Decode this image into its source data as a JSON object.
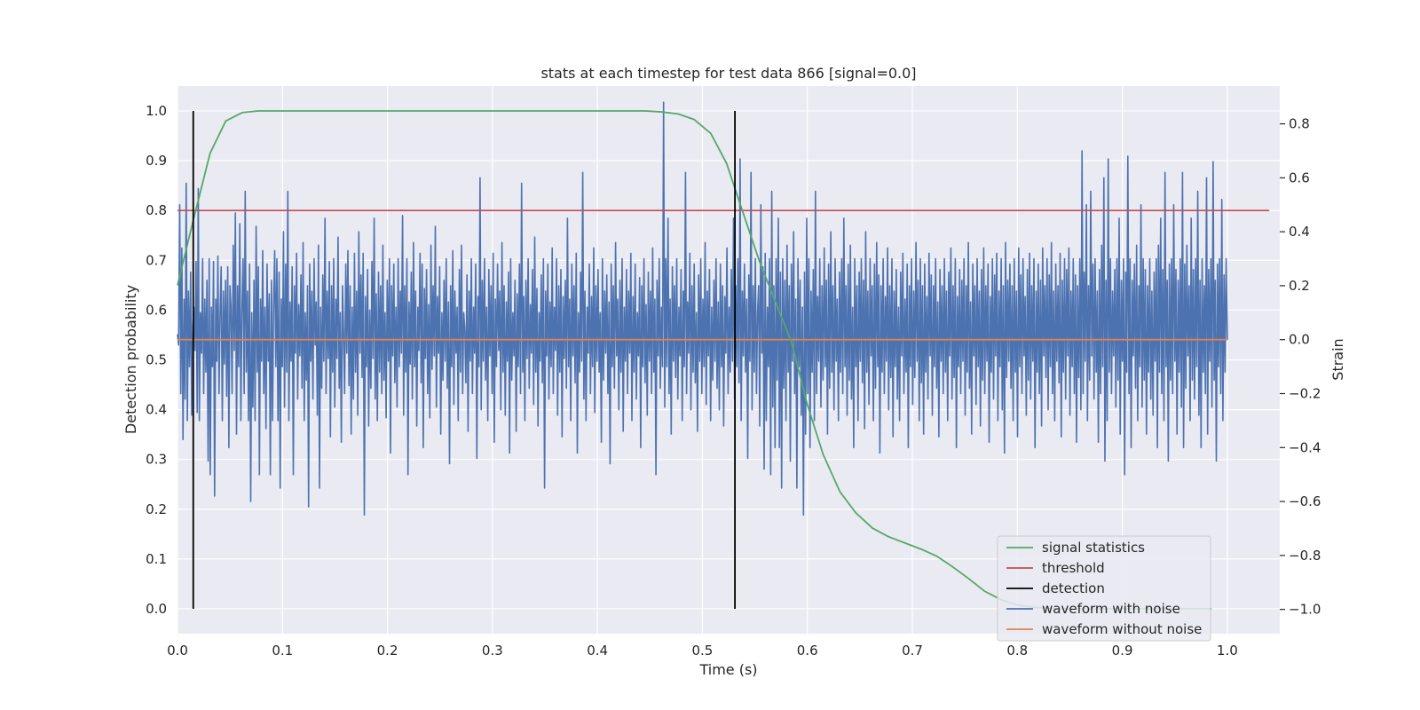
{
  "chart_data": {
    "type": "line",
    "title": "stats at each timestep for test data 866 [signal=0.0]",
    "xlabel": "Time (s)",
    "ylabel": "Detection probability",
    "y2label": "Strain",
    "xlim": [
      0.0,
      1.05
    ],
    "ylim": [
      -0.05,
      1.05
    ],
    "y2lim": [
      -1.09,
      0.94
    ],
    "xticks": [
      0.0,
      0.1,
      0.2,
      0.3,
      0.4,
      0.5,
      0.6,
      0.7,
      0.8,
      0.9,
      1.0
    ],
    "xtick_labels": [
      "0.0",
      "0.1",
      "0.2",
      "0.3",
      "0.4",
      "0.5",
      "0.6",
      "0.7",
      "0.8",
      "0.9",
      "1.0"
    ],
    "yticks": [
      0.0,
      0.1,
      0.2,
      0.3,
      0.4,
      0.5,
      0.6,
      0.7,
      0.8,
      0.9,
      1.0
    ],
    "ytick_labels": [
      "0.0",
      "0.1",
      "0.2",
      "0.3",
      "0.4",
      "0.5",
      "0.6",
      "0.7",
      "0.8",
      "0.9",
      "1.0"
    ],
    "y2ticks": [
      -1.0,
      -0.8,
      -0.6,
      -0.4,
      -0.2,
      0.0,
      0.2,
      0.4,
      0.6,
      0.8
    ],
    "y2tick_labels": [
      "−1.0",
      "−0.8",
      "−0.6",
      "−0.4",
      "−0.2",
      "0.0",
      "0.2",
      "0.4",
      "0.6",
      "0.8"
    ],
    "grid": true,
    "legend_position": "bottom-right",
    "colors": {
      "background": "#eaeaf2",
      "grid": "#ffffff",
      "signal_statistics": "#55a868",
      "threshold": "#c44e52",
      "detection": "#000000",
      "waveform_with_noise": "#4c72b0",
      "waveform_without_noise": "#dd8452"
    },
    "series": [
      {
        "name": "signal statistics",
        "axis": "left",
        "x": [
          0.0,
          0.015,
          0.031,
          0.046,
          0.062,
          0.077,
          0.092,
          0.2,
          0.3,
          0.4,
          0.446,
          0.462,
          0.477,
          0.492,
          0.508,
          0.523,
          0.538,
          0.554,
          0.569,
          0.585,
          0.6,
          0.615,
          0.631,
          0.646,
          0.662,
          0.677,
          0.692,
          0.708,
          0.723,
          0.738,
          0.754,
          0.769,
          0.785,
          0.8,
          0.815,
          0.831,
          0.846,
          0.862,
          0.877,
          0.892,
          0.908,
          0.923,
          0.938,
          0.954,
          0.969,
          0.985
        ],
        "values": [
          0.65,
          0.78,
          0.915,
          0.98,
          0.997,
          1.0,
          1.0,
          1.0,
          1.0,
          1.0,
          1.0,
          0.998,
          0.994,
          0.983,
          0.955,
          0.895,
          0.8,
          0.7,
          0.62,
          0.535,
          0.41,
          0.31,
          0.235,
          0.193,
          0.162,
          0.145,
          0.133,
          0.12,
          0.106,
          0.085,
          0.06,
          0.035,
          0.018,
          0.008,
          0.003,
          0.001,
          0.0,
          0.0,
          0.0,
          0.0,
          0.0,
          0.0,
          0.0,
          0.0,
          0.0,
          0.0
        ]
      },
      {
        "name": "threshold",
        "axis": "left",
        "x": [
          0.0,
          1.04
        ],
        "values": [
          0.8,
          0.8
        ]
      },
      {
        "name": "detection",
        "axis": "left",
        "segments": [
          {
            "x": 0.015,
            "y": [
              0.0,
              1.0
            ]
          },
          {
            "x": 0.531,
            "y": [
              0.0,
              1.0
            ]
          }
        ]
      },
      {
        "name": "waveform with noise",
        "axis": "right",
        "x_start": 0.0,
        "x_end": 1.0,
        "values": [
          0.02,
          -0.02,
          0.5,
          -0.2,
          0.34,
          -0.37,
          0.15,
          -0.22,
          0.58,
          -0.3,
          0.18,
          -0.1,
          0.25,
          -0.28,
          0.05,
          0.12,
          -0.04,
          0.29,
          -0.27,
          0.56,
          -0.3,
          0.1,
          -0.05,
          0.3,
          -0.2,
          0.15,
          -0.12,
          0.22,
          -0.45,
          0.3,
          -0.5,
          0.12,
          -0.1,
          0.29,
          -0.58,
          0.15,
          -0.08,
          0.31,
          -0.2,
          0.1,
          0.27,
          -0.3,
          0.18,
          -0.09,
          0.22,
          -0.21,
          0.27,
          -0.4,
          0.2,
          0.12,
          -0.2,
          0.35,
          -0.04,
          0.47,
          -0.35,
          0.2,
          -0.1,
          0.43,
          -0.3,
          0.1,
          0.3,
          -0.2,
          0.55,
          -0.12,
          0.18,
          -0.3,
          0.28,
          -0.6,
          0.1,
          -0.25,
          0.22,
          -0.3,
          0.42,
          -0.12,
          0.27,
          -0.5,
          0.15,
          -0.08,
          0.33,
          -0.2,
          0.12,
          -0.33,
          0.28,
          -0.08,
          0.17,
          -0.5,
          0.22,
          -0.3,
          0.12,
          0.33,
          -0.1,
          0.3,
          -0.3,
          0.25,
          -0.55,
          0.15,
          -0.1,
          0.4,
          -0.25,
          0.28,
          -0.12,
          0.55,
          -0.3,
          0.14,
          -0.08,
          0.27,
          -0.5,
          0.2,
          -0.05,
          0.32,
          -0.22,
          0.13,
          -0.06,
          0.24,
          -0.18,
          0.36,
          -0.3,
          0.1,
          -0.15,
          0.2,
          -0.62,
          0.28,
          -0.08,
          0.18,
          -0.22,
          0.3,
          -0.02,
          0.14,
          -0.28,
          0.35,
          -0.55,
          0.12,
          -0.18,
          0.24,
          -0.08,
          0.45,
          -0.2,
          0.18,
          -0.07,
          0.29,
          -0.36,
          0.2,
          -0.12,
          0.3,
          -0.25,
          0.15,
          -0.07,
          0.38,
          -0.18,
          0.1,
          -0.38,
          0.2,
          0.02,
          -0.2,
          0.28,
          -0.05,
          0.33,
          -0.17,
          0.2,
          -0.35,
          0.12,
          -0.22,
          0.32,
          -0.12,
          0.18,
          -0.28,
          0.4,
          -0.05,
          0.24,
          -0.14,
          0.32,
          -0.65,
          0.16,
          -0.1,
          0.26,
          -0.32,
          0.11,
          -0.18,
          0.29,
          -0.07,
          0.45,
          -0.22,
          0.17,
          -0.3,
          0.25,
          -0.12,
          0.2,
          -0.2,
          0.35,
          -0.15,
          0.1,
          -0.29,
          0.22,
          -0.08,
          0.3,
          -0.42,
          0.2,
          -0.06,
          0.28,
          -0.16,
          0.12,
          -0.25,
          0.3,
          -0.1,
          0.18,
          -0.05,
          0.46,
          -0.28,
          0.2,
          -0.12,
          0.3,
          -0.5,
          0.14,
          -0.09,
          0.25,
          -0.22,
          0.36,
          -0.1,
          0.18,
          -0.32,
          0.12,
          -0.04,
          0.32,
          -0.16,
          0.28,
          -0.4,
          0.19,
          -0.07,
          0.26,
          -0.2,
          0.13,
          -0.29,
          0.35,
          -0.11,
          0.2,
          -0.06,
          0.42,
          -0.25,
          0.16,
          -0.05,
          0.27,
          -0.35,
          0.1,
          -0.15,
          0.22,
          -0.08,
          0.3,
          -0.18,
          0.14,
          -0.46,
          0.2,
          -0.1,
          0.33,
          -0.24,
          0.18,
          -0.05,
          0.12,
          -0.3,
          0.26,
          -0.12,
          0.35,
          -0.2,
          0.1,
          0.04,
          -0.16,
          0.24,
          -0.34,
          0.18,
          -0.08,
          0.3,
          -0.2,
          0.12,
          -0.05,
          0.28,
          -0.44,
          0.16,
          -0.1,
          0.6,
          -0.26,
          0.22,
          -0.08,
          0.3,
          -0.15,
          0.12,
          -0.3,
          0.26,
          -0.06,
          0.2,
          -0.2,
          0.32,
          -0.38,
          0.15,
          -0.1,
          0.28,
          -0.04,
          0.18,
          -0.26,
          0.36,
          -0.12,
          0.2,
          -0.28,
          0.14,
          -0.08,
          0.25,
          -0.42,
          0.3,
          -0.15,
          0.1,
          -0.06,
          0.22,
          -0.34,
          0.17,
          -0.1,
          0.28,
          -0.2,
          0.58,
          -0.12,
          0.16,
          -0.3,
          0.22,
          -0.07,
          0.3,
          -0.18,
          0.13,
          -0.05,
          0.26,
          -0.24,
          0.38,
          -0.12,
          0.19,
          -0.32,
          0.1,
          -0.08,
          0.24,
          -0.16,
          0.3,
          -0.55,
          0.18,
          -0.06,
          0.28,
          -0.22,
          0.14,
          -0.1,
          0.34,
          -0.2,
          0.12,
          -0.04,
          0.3,
          -0.28,
          0.2,
          -0.12,
          0.26,
          -0.36,
          0.16,
          -0.07,
          0.22,
          -0.18,
          0.45,
          -0.1,
          0.15,
          -0.3,
          0.28,
          -0.06,
          0.2,
          -0.16,
          0.32,
          -0.42,
          0.1,
          -0.12,
          0.25,
          -0.08,
          0.62,
          -0.22,
          0.18,
          -0.3,
          0.12,
          -0.05,
          0.28,
          -0.2,
          0.16,
          -0.1,
          0.34,
          -0.27,
          0.2,
          -0.08,
          0.26,
          -0.12,
          0.1,
          -0.38,
          0.3,
          -0.15,
          0.18,
          -0.05,
          0.24,
          -0.2,
          0.14,
          -0.46,
          0.28,
          -0.1,
          0.2,
          -0.18,
          0.36,
          -0.06,
          0.15,
          -0.26,
          0.22,
          -0.12,
          0.3,
          -0.34,
          0.12,
          -0.08,
          0.26,
          -0.2,
          0.18,
          -0.05,
          0.32,
          -0.3,
          0.16,
          -0.12,
          0.28,
          -0.22,
          0.1,
          -0.06,
          0.23,
          -0.4,
          0.2,
          -0.1,
          0.3,
          -0.16,
          0.13,
          -0.28,
          0.25,
          -0.08,
          0.18,
          -0.2,
          0.34,
          -0.12,
          0.15,
          -0.5,
          0.22,
          -0.06,
          0.3,
          -0.18,
          0.12,
          -0.1,
          0.88,
          -0.25,
          0.3,
          -0.1,
          0.45,
          -0.2,
          0.15,
          -0.35,
          0.27,
          -0.08,
          0.2,
          -0.14,
          0.3,
          -0.22,
          0.12,
          -0.06,
          0.26,
          -0.3,
          0.18,
          -0.1,
          0.62,
          -0.2,
          0.14,
          -0.05,
          0.32,
          -0.26,
          0.2,
          -0.12,
          0.28,
          -0.16,
          0.1,
          -0.34,
          0.24,
          -0.08,
          0.3,
          -0.2,
          0.15,
          -0.1,
          0.36,
          -0.24,
          0.18,
          -0.06,
          0.26,
          -0.3,
          0.12,
          -0.15,
          0.22,
          -0.08,
          0.3,
          -0.18,
          0.14,
          -0.26,
          0.28,
          -0.1,
          0.2,
          -0.32,
          0.16,
          -0.05,
          0.34,
          -0.2,
          0.12,
          -0.12,
          0.26,
          -0.08,
          0.45,
          -0.22,
          0.2,
          -0.1,
          0.3,
          -0.16,
          0.67,
          -0.3,
          0.18,
          -0.06,
          0.28,
          -0.12,
          0.15,
          -0.44,
          0.24,
          -0.08,
          0.62,
          -0.26,
          0.2,
          -0.12,
          0.3,
          -0.2,
          0.1,
          0.2,
          -0.32,
          0.5,
          -0.05,
          0.27,
          -0.48,
          0.32,
          -0.3,
          0.12,
          -0.1,
          0.3,
          -0.5,
          0.55,
          -0.25,
          0.2,
          -0.4,
          0.3,
          -0.15,
          0.45,
          -0.4,
          0.25,
          -0.55,
          0.3,
          -0.18,
          0.22,
          -0.3,
          0.35,
          -0.12,
          0.2,
          -0.45,
          0.28,
          -0.08,
          0.4,
          -0.2,
          0.15,
          -0.55,
          0.3,
          -0.1,
          0.22,
          -0.28,
          0.12,
          -0.65,
          0.25,
          -0.35,
          0.45,
          -0.2,
          0.3,
          -0.4,
          0.18,
          -0.12,
          0.26,
          -0.3,
          0.55,
          -0.2,
          0.16,
          -0.08,
          0.3,
          -0.25,
          0.2,
          -0.15,
          0.34,
          -0.1,
          0.22,
          -0.35,
          0.28,
          -0.18,
          0.4,
          -0.12,
          0.2,
          -0.26,
          0.3,
          -0.08,
          0.15,
          -0.3,
          0.25,
          -0.12,
          0.3,
          -0.2,
          0.45,
          -0.1,
          0.2,
          -0.28,
          0.28,
          -0.15,
          0.35,
          -0.22,
          0.12,
          -0.4,
          0.3,
          -0.1,
          0.2,
          -0.3,
          0.25,
          -0.08,
          0.3,
          -0.16,
          0.22,
          -0.33,
          0.4,
          -0.12,
          0.18,
          -0.24,
          0.3,
          -0.06,
          0.2,
          -0.3,
          0.28,
          -0.18,
          0.36,
          -0.1,
          0.24,
          -0.42,
          0.2,
          -0.12,
          0.3,
          -0.2,
          0.16,
          -0.08,
          0.34,
          -0.26,
          0.2,
          -0.14,
          0.3,
          -0.36,
          0.18,
          -0.1,
          0.26,
          -0.22,
          0.12,
          -0.3,
          0.25,
          -0.06,
          0.32,
          -0.2,
          0.15,
          -0.12,
          0.28,
          -0.4,
          0.2,
          -0.1,
          0.3,
          -0.24,
          0.18,
          -0.14,
          0.36,
          -0.08,
          0.22,
          -0.3,
          0.3,
          -0.16,
          0.2,
          -0.35,
          0.28,
          -0.12,
          0.16,
          -0.22,
          0.32,
          -0.06,
          0.24,
          -0.28,
          0.2,
          -0.1,
          0.3,
          -0.18,
          0.14,
          -0.36,
          0.26,
          -0.08,
          0.2,
          -0.2,
          0.3,
          -0.12,
          0.18,
          -0.3,
          0.25,
          -0.06,
          0.34,
          -0.22,
          0.2,
          -0.14,
          0.3,
          -0.4,
          0.16,
          -0.1,
          0.26,
          -0.2,
          0.22,
          -0.08,
          0.3,
          -0.28,
          0.2,
          -0.12,
          0.36,
          -0.18,
          0.14,
          -0.35,
          0.28,
          -0.06,
          0.2,
          -0.24,
          0.3,
          -0.1,
          0.18,
          -0.32,
          0.26,
          -0.15,
          0.34,
          -0.2,
          0.2,
          -0.08,
          0.28,
          -0.38,
          0.16,
          -0.12,
          0.3,
          -0.22,
          0.24,
          -0.06,
          0.32,
          -0.3,
          0.18,
          -0.1,
          0.3,
          -0.26,
          0.2,
          -0.42,
          0.36,
          -0.14,
          0.22,
          -0.08,
          0.28,
          -0.18,
          0.2,
          -0.3,
          0.3,
          -0.12,
          0.18,
          -0.36,
          0.34,
          -0.1,
          0.24,
          -0.2,
          0.3,
          -0.06,
          0.16,
          -0.28,
          0.26,
          -0.15,
          0.32,
          -0.22,
          0.2,
          -0.08,
          0.3,
          -0.4,
          0.18,
          -0.12,
          0.28,
          -0.2,
          0.22,
          -0.32,
          0.34,
          -0.06,
          0.2,
          -0.14,
          0.3,
          -0.26,
          0.24,
          -0.1,
          0.36,
          -0.2,
          0.18,
          -0.3,
          0.28,
          -0.08,
          0.2,
          -0.16,
          0.32,
          -0.36,
          0.22,
          -0.12,
          0.3,
          -0.22,
          0.26,
          -0.06,
          0.34,
          -0.28,
          0.18,
          -0.1,
          0.3,
          -0.2,
          0.24,
          -0.38,
          0.2,
          -0.14,
          0.3,
          -0.26,
          0.7,
          -0.2,
          0.25,
          -0.08,
          0.5,
          -0.3,
          0.2,
          -0.15,
          0.55,
          -0.06,
          0.28,
          -0.22,
          0.3,
          -0.12,
          0.18,
          -0.38,
          0.26,
          -0.2,
          0.35,
          -0.1,
          0.6,
          -0.45,
          0.22,
          -0.3,
          0.67,
          -0.12,
          0.3,
          -0.2,
          0.18,
          -0.06,
          0.26,
          -0.25,
          0.3,
          -0.15,
          0.45,
          -0.35,
          0.22,
          -0.08,
          0.3,
          -0.5,
          0.25,
          -0.12,
          0.68,
          -0.2,
          0.3,
          -0.4,
          0.22,
          -0.06,
          0.28,
          -0.18,
          0.35,
          -0.3,
          0.2,
          -0.1,
          0.5,
          -0.25,
          0.3,
          -0.15,
          0.26,
          -0.35,
          0.2,
          -0.12,
          0.3,
          -0.22,
          0.18,
          -0.28,
          0.25,
          -0.08,
          0.3,
          -0.4,
          0.35,
          -0.12,
          0.45,
          -0.2,
          0.26,
          -0.3,
          0.62,
          -0.1,
          0.22,
          -0.45,
          0.28,
          -0.15,
          0.3,
          -0.2,
          0.5,
          -0.08,
          0.26,
          -0.35,
          0.22,
          -0.12,
          0.3,
          -0.25,
          0.62,
          -0.4,
          0.28,
          -0.18,
          0.35,
          -0.06,
          0.2,
          -0.3,
          0.45,
          -0.15,
          0.26,
          -0.22,
          0.3,
          -0.1,
          0.55,
          -0.28,
          0.22,
          -0.4,
          0.3,
          -0.12,
          0.2,
          -0.2,
          0.6,
          -0.35,
          0.26,
          -0.08,
          0.3,
          -0.25,
          0.66,
          -0.15,
          0.22,
          -0.45,
          0.28,
          -0.1,
          0.3,
          -0.2,
          0.52,
          -0.3,
          0.24,
          -0.12,
          0.3,
          0.0
        ]
      },
      {
        "name": "waveform without noise",
        "axis": "right",
        "x": [
          0.0,
          1.0
        ],
        "values": [
          0.0,
          0.0
        ]
      }
    ],
    "legend": [
      "signal statistics",
      "threshold",
      "detection",
      "waveform with noise",
      "waveform without noise"
    ]
  }
}
